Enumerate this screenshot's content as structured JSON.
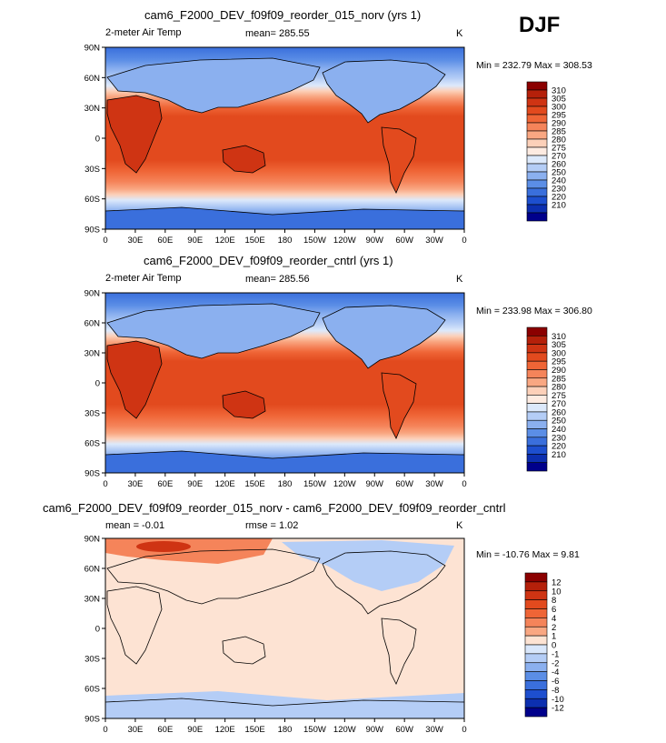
{
  "season": "DJF",
  "panels": [
    {
      "title": "cam6_F2000_DEV_f09f09_reorder_015_norv (yrs 1)",
      "left_label": "2-meter Air Temp",
      "center_label": "mean= 285.55",
      "units": "K",
      "minmax": "Min = 232.79 Max = 308.53"
    },
    {
      "title": "cam6_F2000_DEV_f09f09_reorder_cntrl (yrs 1)",
      "left_label": "2-meter Air Temp",
      "center_label": "mean= 285.56",
      "units": "K",
      "minmax": "Min = 233.98 Max = 306.80"
    },
    {
      "title": "cam6_F2000_DEV_f09f09_reorder_015_norv - cam6_F2000_DEV_f09f09_reorder_cntrl",
      "left_label": "mean = -0.01",
      "center_label": "rmse = 1.02",
      "units": "K",
      "minmax": "Min = -10.76 Max = 9.81"
    }
  ],
  "lat_ticks": [
    "90N",
    "60N",
    "30N",
    "0",
    "30S",
    "60S",
    "90S"
  ],
  "lon_ticks": [
    "0",
    "30E",
    "60E",
    "90E",
    "120E",
    "150E",
    "180",
    "150W",
    "120W",
    "90W",
    "60W",
    "30W",
    "0"
  ],
  "temp_colorbar": {
    "labels": [
      "310",
      "305",
      "300",
      "295",
      "290",
      "285",
      "280",
      "275",
      "270",
      "260",
      "250",
      "240",
      "230",
      "220",
      "210"
    ],
    "colors": [
      "#8b0000",
      "#b5200a",
      "#cf3413",
      "#e24a1e",
      "#ef6536",
      "#f5845a",
      "#f9a782",
      "#fcd0b9",
      "#fdebe1",
      "#dce9fb",
      "#b4cdf6",
      "#8bb0ef",
      "#5b8ee6",
      "#3a6fdc",
      "#1d4fcf",
      "#0c2fb0",
      "#00008b"
    ]
  },
  "diff_colorbar": {
    "labels": [
      "12",
      "10",
      "8",
      "6",
      "4",
      "2",
      "1",
      "0",
      "-1",
      "-2",
      "-4",
      "-6",
      "-8",
      "-10",
      "-12"
    ],
    "colors": [
      "#8b0000",
      "#b5200a",
      "#cf3413",
      "#e24a1e",
      "#ef6536",
      "#f5845a",
      "#f9a782",
      "#fde3d3",
      "#d9e7fb",
      "#b4cdf6",
      "#8bb0ef",
      "#5b8ee6",
      "#3a6fdc",
      "#1d4fcf",
      "#0c2fb0",
      "#00008b"
    ]
  }
}
